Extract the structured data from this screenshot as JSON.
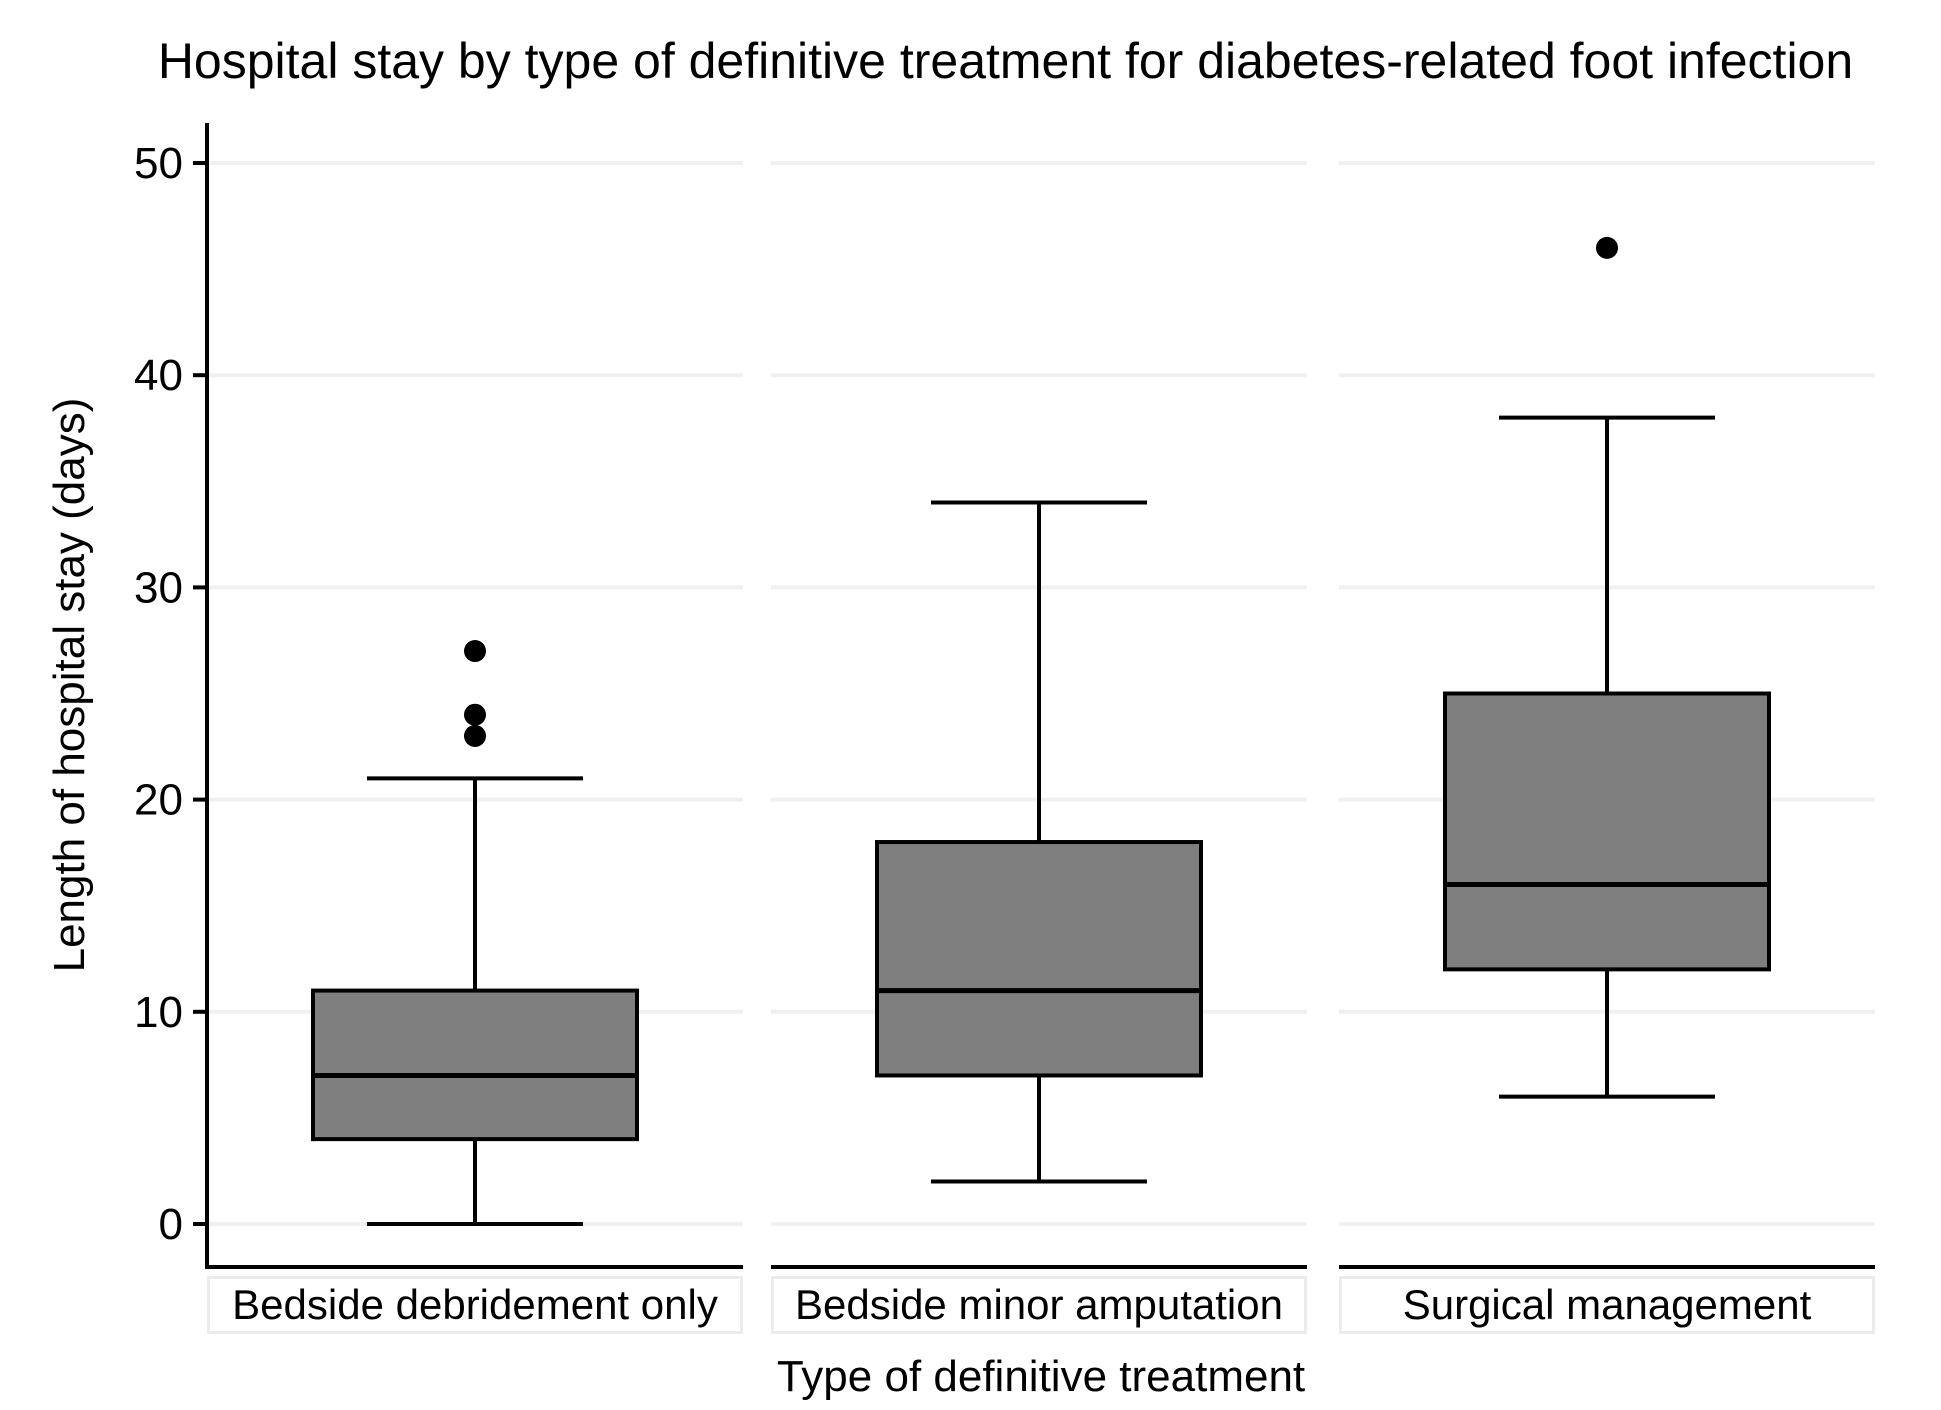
{
  "chart_data": {
    "type": "box",
    "title": "Hospital stay by type of definitive treatment for diabetes-related foot infection",
    "xlabel": "Type of definitive treatment",
    "ylabel": "Length of hospital stay (days)",
    "ylim": [
      0,
      50
    ],
    "yticks": [
      0,
      10,
      20,
      30,
      40,
      50
    ],
    "grid": "horizontal",
    "legend": "none",
    "categories": [
      "Bedside debridement only",
      "Bedside minor amputation",
      "Surgical management"
    ],
    "series": [
      {
        "name": "Bedside debridement only",
        "whisker_low": 0,
        "q1": 4,
        "median": 7,
        "q3": 11,
        "whisker_high": 21,
        "outliers": [
          23,
          24,
          27
        ]
      },
      {
        "name": "Bedside minor amputation",
        "whisker_low": 2,
        "q1": 7,
        "median": 11,
        "q3": 18,
        "whisker_high": 34,
        "outliers": []
      },
      {
        "name": "Surgical management",
        "whisker_low": 6,
        "q1": 12,
        "median": 16,
        "q3": 25,
        "whisker_high": 38,
        "outliers": [
          46
        ]
      }
    ],
    "colors": {
      "box_fill": "#7f7f7f",
      "line": "#000000",
      "grid": "#f0f0f0",
      "label_box_border": "#ececec",
      "background": "#ffffff"
    }
  }
}
